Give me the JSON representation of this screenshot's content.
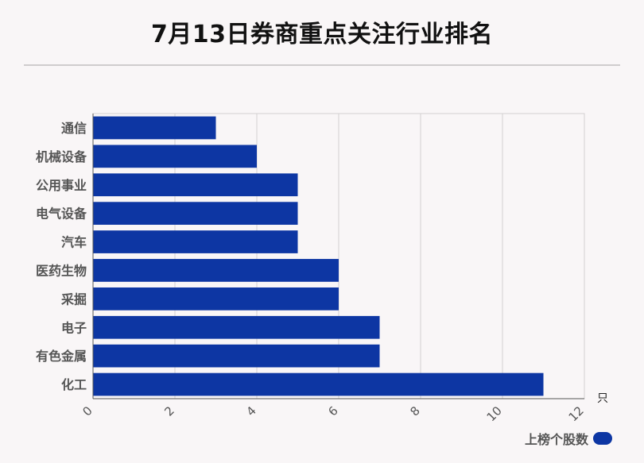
{
  "title": "7月13日券商重点关注行业排名",
  "legend": {
    "label": "上榜个股数",
    "color": "#0d36a3"
  },
  "chart_data": {
    "type": "bar",
    "orientation": "horizontal",
    "title": "7月13日券商重点关注行业排名",
    "unit": "只",
    "categories": [
      "通信",
      "机械设备",
      "公用事业",
      "电气设备",
      "汽车",
      "医药生物",
      "采掘",
      "电子",
      "有色金属",
      "化工"
    ],
    "series": [
      {
        "name": "上榜个股数",
        "values": [
          3,
          4,
          5,
          5,
          5,
          6,
          6,
          7,
          7,
          11
        ],
        "color": "#0d36a3"
      }
    ],
    "xlim": [
      0,
      12
    ],
    "xticks": [
      0,
      2,
      4,
      6,
      8,
      10,
      12
    ],
    "grid": true,
    "legend_position": "bottom-right"
  }
}
